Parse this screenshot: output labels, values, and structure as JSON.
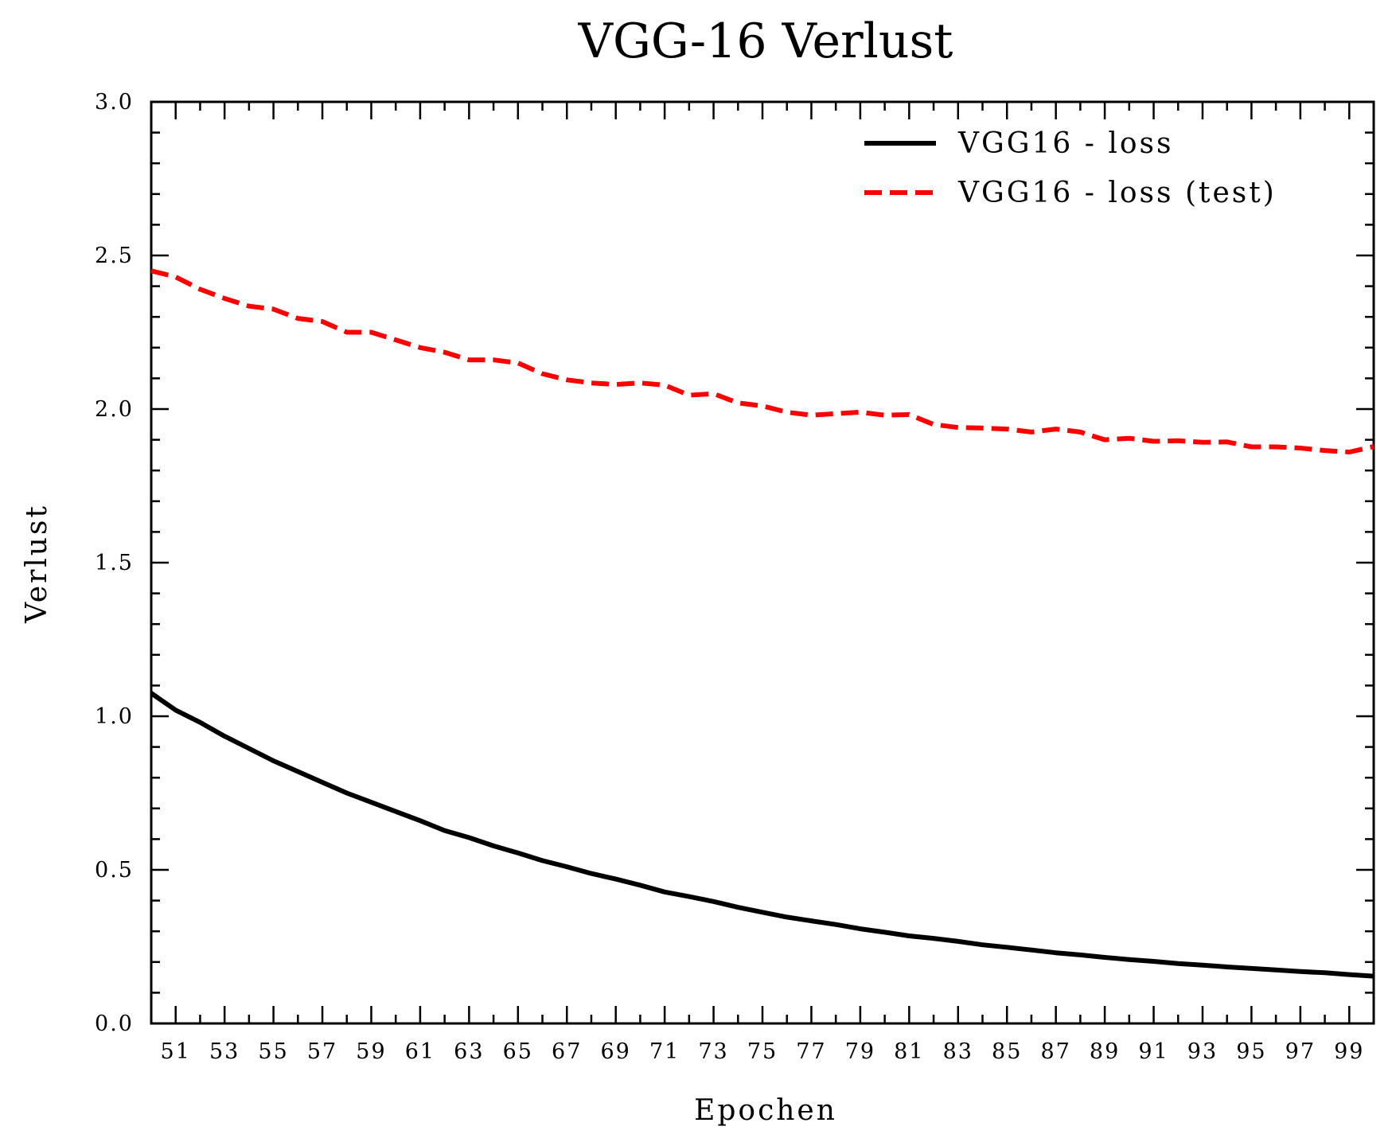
{
  "chart_data": {
    "type": "line",
    "title": "VGG-16 Verlust",
    "xlabel": "Epochen",
    "ylabel": "Verlust",
    "xlim": [
      50,
      100
    ],
    "ylim": [
      0.0,
      3.0
    ],
    "xticks": [
      51,
      53,
      55,
      57,
      59,
      61,
      63,
      65,
      67,
      69,
      71,
      73,
      75,
      77,
      79,
      81,
      83,
      85,
      87,
      89,
      91,
      93,
      95,
      97,
      99
    ],
    "yticks": [
      "0.0",
      "0.5",
      "1.0",
      "1.5",
      "2.0",
      "2.5",
      "3.0"
    ],
    "legend_position": "top-right",
    "x": [
      50,
      51,
      52,
      53,
      54,
      55,
      56,
      57,
      58,
      59,
      60,
      61,
      62,
      63,
      64,
      65,
      66,
      67,
      68,
      69,
      70,
      71,
      72,
      73,
      74,
      75,
      76,
      77,
      78,
      79,
      80,
      81,
      82,
      83,
      84,
      85,
      86,
      87,
      88,
      89,
      90,
      91,
      92,
      93,
      94,
      95,
      96,
      97,
      98,
      99,
      100
    ],
    "series": [
      {
        "name": "VGG16 - loss",
        "color": "#000000",
        "dash": "solid",
        "values": [
          1.075,
          1.02,
          0.98,
          0.935,
          0.895,
          0.855,
          0.82,
          0.785,
          0.75,
          0.72,
          0.69,
          0.66,
          0.628,
          0.605,
          0.578,
          0.555,
          0.53,
          0.51,
          0.488,
          0.47,
          0.45,
          0.428,
          0.413,
          0.397,
          0.378,
          0.362,
          0.346,
          0.334,
          0.322,
          0.308,
          0.297,
          0.285,
          0.277,
          0.267,
          0.256,
          0.248,
          0.239,
          0.23,
          0.223,
          0.215,
          0.208,
          0.202,
          0.195,
          0.19,
          0.184,
          0.179,
          0.174,
          0.169,
          0.165,
          0.159,
          0.154
        ]
      },
      {
        "name": "VGG16 - loss (test)",
        "color": "#ff0000",
        "dash": "dashed",
        "values": [
          2.45,
          2.43,
          2.39,
          2.36,
          2.335,
          2.325,
          2.295,
          2.285,
          2.25,
          2.25,
          2.225,
          2.2,
          2.185,
          2.16,
          2.16,
          2.15,
          2.115,
          2.095,
          2.085,
          2.08,
          2.085,
          2.078,
          2.045,
          2.05,
          2.02,
          2.01,
          1.99,
          1.98,
          1.985,
          1.99,
          1.98,
          1.982,
          1.95,
          1.94,
          1.938,
          1.935,
          1.925,
          1.935,
          1.925,
          1.9,
          1.905,
          1.895,
          1.897,
          1.892,
          1.893,
          1.877,
          1.877,
          1.873,
          1.865,
          1.86,
          1.878
        ]
      }
    ]
  }
}
